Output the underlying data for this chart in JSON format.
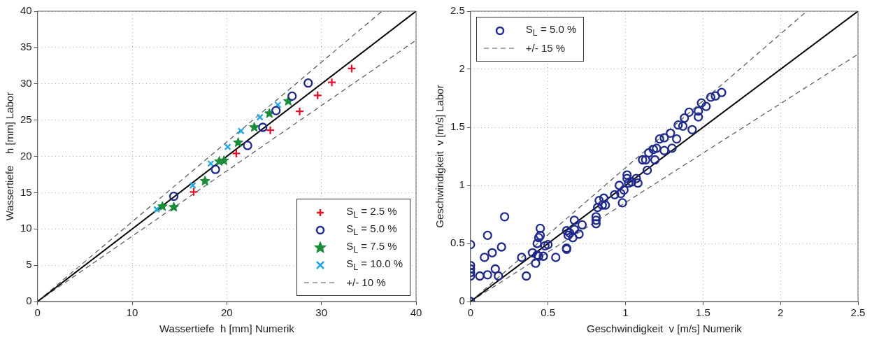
{
  "chart_data": [
    {
      "type": "scatter",
      "xlabel": "Wassertiefe  h [mm] Numerik",
      "ylabel": "Wassertiefe    h [mm] Labor",
      "xlim": [
        0,
        40
      ],
      "ylim": [
        0,
        40
      ],
      "xticks": [
        0,
        10,
        20,
        30,
        40
      ],
      "yticks": [
        0,
        5,
        10,
        15,
        20,
        25,
        30,
        35,
        40
      ],
      "grid": true,
      "legend": "bottom right",
      "series": [
        {
          "name": "S$_{L}$ = 2.5 %",
          "color": "#e8112d",
          "marker": "cross",
          "x": [
            33.2,
            31.1,
            29.6,
            27.7,
            24.6,
            21.0,
            16.5
          ],
          "values": [
            32.1,
            30.2,
            28.4,
            26.2,
            23.6,
            20.4,
            15.1
          ]
        },
        {
          "name": "S$_{L}$ = 5.0 %",
          "color": "#1f2a8c",
          "marker": "circle",
          "x": [
            28.6,
            26.9,
            25.2,
            23.8,
            22.2,
            18.8,
            14.4
          ],
          "values": [
            30.1,
            28.3,
            26.3,
            24.0,
            21.5,
            18.2,
            14.5
          ]
        },
        {
          "name": "S$_{L}$ = 7.5 %",
          "color": "#1a8c3a",
          "marker": "star",
          "x": [
            26.5,
            24.5,
            22.9,
            21.2,
            19.7,
            19.2,
            17.7,
            14.4,
            13.2
          ],
          "values": [
            27.6,
            25.9,
            24.0,
            21.9,
            19.4,
            19.3,
            16.6,
            13.0,
            13.1
          ]
        },
        {
          "name": "S$_{L}$ = 10.0 %",
          "color": "#22a8e0",
          "marker": "x",
          "x": [
            25.4,
            23.5,
            21.5,
            20.1,
            18.3,
            16.4,
            12.6
          ],
          "values": [
            27.1,
            25.4,
            23.5,
            21.3,
            19.0,
            16.0,
            12.7
          ]
        },
        {
          "type": "line",
          "color": "#000000",
          "marker": "none",
          "line_style": "solid",
          "x": [
            0,
            40
          ],
          "values": [
            0,
            40
          ]
        },
        {
          "type": "line",
          "name": "+/- 10 %",
          "color": "#555555",
          "marker": "none",
          "line_style": "dashed",
          "x": [
            0,
            36.4
          ],
          "values": [
            0,
            40
          ]
        },
        {
          "type": "line",
          "color": "#555555",
          "marker": "none",
          "line_style": "dashed",
          "x": [
            0,
            40
          ],
          "values": [
            0,
            36
          ]
        }
      ]
    },
    {
      "type": "scatter",
      "xlabel": "Geschwindigkeit  v [m/s] Numerik",
      "ylabel": "Geschwindigkeit  v [m/s] Labor",
      "xlim": [
        0,
        2.5
      ],
      "ylim": [
        0,
        2.5
      ],
      "xticks": [
        0,
        0.5,
        1,
        1.5,
        2,
        2.5
      ],
      "yticks": [
        0,
        0.5,
        1,
        1.5,
        2,
        2.5
      ],
      "grid": true,
      "legend": "top left",
      "series": [
        {
          "name": "S$_{L}$ = 5.0 %",
          "color": "#1f2a8c",
          "marker": "circle",
          "x": [
            0,
            0,
            0,
            0,
            0,
            0,
            0.06,
            0.11,
            0.09,
            0.14,
            0.11,
            0.16,
            0.18,
            0.2,
            0.22,
            0.33,
            0.36,
            0.4,
            0.42,
            0.43,
            0.44,
            0.47,
            0.43,
            0.44,
            0.45,
            0.45,
            0.48,
            0.5,
            0.55,
            0.62,
            0.62,
            0.62,
            0.63,
            0.64,
            0.66,
            0.67,
            0.67,
            0.7,
            0.72,
            0.81,
            0.81,
            0.81,
            0.82,
            0.83,
            0.85,
            0.86,
            0.87,
            0.93,
            0.96,
            0.97,
            0.98,
            0.99,
            1.01,
            1.01,
            1.02,
            1.04,
            1.07,
            1.08,
            1.11,
            1.13,
            1.14,
            1.15,
            1.18,
            1.19,
            1.2,
            1.22,
            1.25,
            1.25,
            1.29,
            1.3,
            1.33,
            1.34,
            1.37,
            1.38,
            1.41,
            1.43,
            1.47,
            1.47,
            1.49,
            1.52,
            1.55,
            1.58,
            1.62
          ],
          "values": [
            0.49,
            0.31,
            0.28,
            0.25,
            0.22,
            0,
            0.22,
            0.23,
            0.38,
            0.42,
            0.57,
            0.28,
            0.22,
            0.47,
            0.73,
            0.38,
            0.22,
            0.42,
            0.33,
            0.4,
            0.39,
            0.39,
            0.5,
            0.55,
            0.63,
            0.57,
            0.48,
            0.49,
            0.38,
            0.61,
            0.46,
            0.45,
            0.57,
            0.59,
            0.55,
            0.7,
            0.62,
            0.58,
            0.66,
            0.73,
            0.67,
            0.7,
            0.81,
            0.87,
            0.83,
            0.89,
            0.83,
            0.92,
            1.0,
            0.93,
            0.85,
            0.96,
            1.09,
            1.06,
            1.02,
            1.03,
            1.06,
            1.02,
            1.22,
            1.22,
            1.13,
            1.28,
            1.31,
            1.22,
            1.32,
            1.4,
            1.3,
            1.41,
            1.45,
            1.32,
            1.4,
            1.52,
            1.51,
            1.58,
            1.63,
            1.48,
            1.59,
            1.64,
            1.71,
            1.68,
            1.76,
            1.77,
            1.8
          ]
        },
        {
          "type": "line",
          "color": "#000000",
          "marker": "none",
          "line_style": "solid",
          "x": [
            0,
            2.5
          ],
          "values": [
            0,
            2.5
          ]
        },
        {
          "type": "line",
          "name": "+/- 15 %",
          "color": "#555555",
          "marker": "none",
          "line_style": "dashed",
          "x": [
            0,
            2.17
          ],
          "values": [
            0,
            2.5
          ]
        },
        {
          "type": "line",
          "color": "#555555",
          "marker": "none",
          "line_style": "dashed",
          "x": [
            0,
            2.5
          ],
          "values": [
            0,
            2.13
          ]
        }
      ]
    }
  ]
}
